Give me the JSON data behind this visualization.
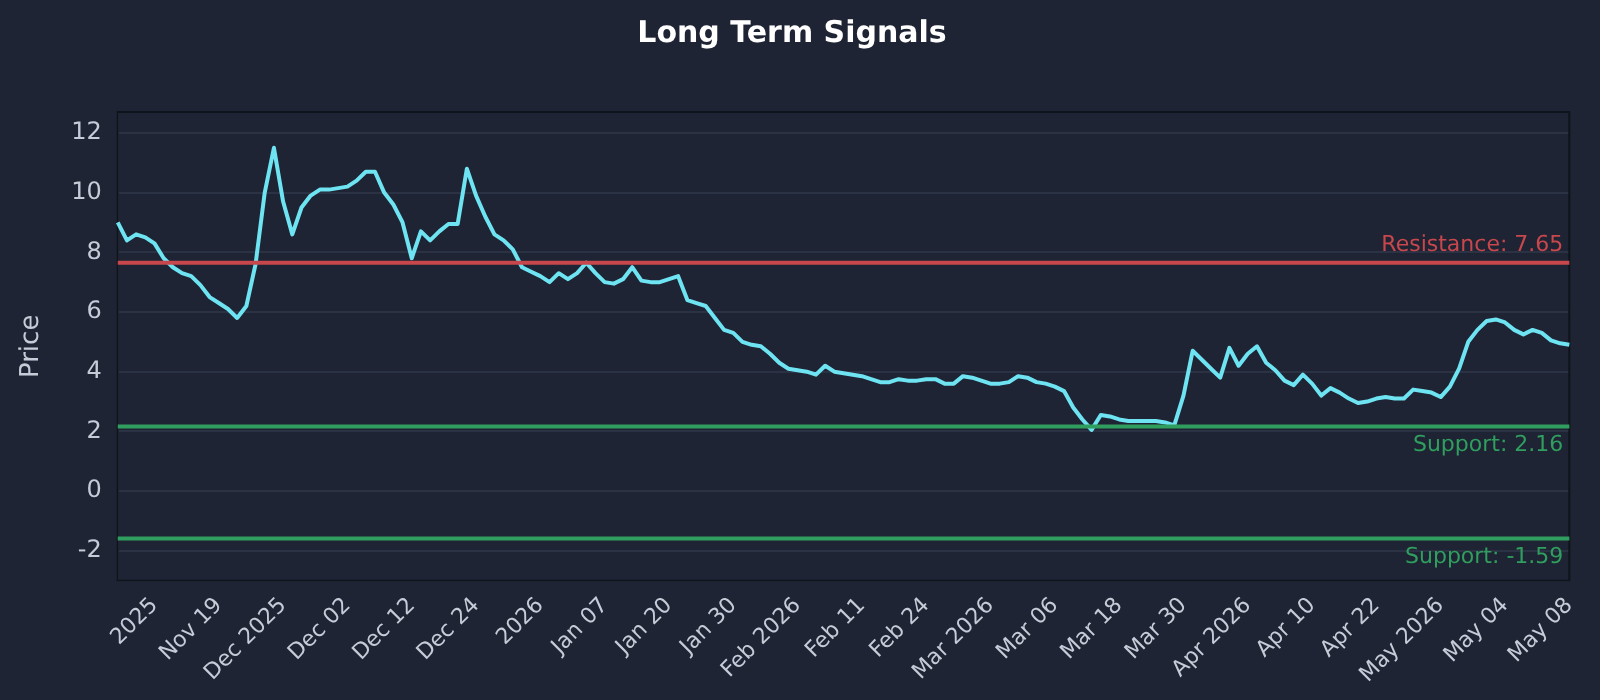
{
  "chart_data": {
    "type": "line",
    "title": "Long Term Signals",
    "ylabel": "Price",
    "categories": [
      null,
      null,
      null,
      null,
      "2025",
      null,
      null,
      null,
      null,
      null,
      null,
      "Nov 19",
      null,
      null,
      null,
      null,
      null,
      null,
      "Dec 2025",
      null,
      null,
      null,
      null,
      null,
      null,
      "Dec 02",
      null,
      null,
      null,
      null,
      null,
      null,
      "Dec 12",
      null,
      null,
      null,
      null,
      null,
      null,
      "Dec 24",
      null,
      null,
      null,
      null,
      null,
      null,
      "2026",
      null,
      null,
      null,
      null,
      null,
      null,
      "Jan 07",
      null,
      null,
      null,
      null,
      null,
      null,
      "Jan 20",
      null,
      null,
      null,
      null,
      null,
      null,
      "Jan 30",
      null,
      null,
      null,
      null,
      null,
      null,
      "Feb 2026",
      null,
      null,
      null,
      null,
      null,
      null,
      "Feb 11",
      null,
      null,
      null,
      null,
      null,
      null,
      "Feb 24",
      null,
      null,
      null,
      null,
      null,
      null,
      "Mar 2026",
      null,
      null,
      null,
      null,
      null,
      null,
      "Mar 06",
      null,
      null,
      null,
      null,
      null,
      null,
      "Mar 18",
      null,
      null,
      null,
      null,
      null,
      null,
      "Mar 30",
      null,
      null,
      null,
      null,
      null,
      null,
      "Apr 2026",
      null,
      null,
      null,
      null,
      null,
      null,
      "Apr 10",
      null,
      null,
      null,
      null,
      null,
      null,
      "Apr 22",
      null,
      null,
      null,
      null,
      null,
      null,
      "May 2026",
      null,
      null,
      null,
      null,
      null,
      null,
      "May 04",
      null,
      null,
      null,
      null,
      null,
      null,
      "May 08"
    ],
    "series": [
      {
        "color": "#6ee3f2",
        "values": [
          9.0,
          8.4,
          8.6,
          8.5,
          8.3,
          7.8,
          7.5,
          7.3,
          7.2,
          6.9,
          6.5,
          6.3,
          6.1,
          5.8,
          6.2,
          7.6,
          10.0,
          11.5,
          9.7,
          8.6,
          9.5,
          9.9,
          10.1,
          10.1,
          10.15,
          10.2,
          10.4,
          10.7,
          10.7,
          10.0,
          9.6,
          9.0,
          7.8,
          8.7,
          8.4,
          8.7,
          8.95,
          8.95,
          10.8,
          9.9,
          9.2,
          8.6,
          8.4,
          8.1,
          7.5,
          7.35,
          7.2,
          7.0,
          7.3,
          7.1,
          7.3,
          7.65,
          7.3,
          7.0,
          6.95,
          7.1,
          7.5,
          7.05,
          7.0,
          7.0,
          7.1,
          7.2,
          6.4,
          6.3,
          6.2,
          5.8,
          5.4,
          5.3,
          5.0,
          4.9,
          4.85,
          4.6,
          4.3,
          4.1,
          4.05,
          4.0,
          3.9,
          4.2,
          4.0,
          3.95,
          3.9,
          3.85,
          3.75,
          3.65,
          3.65,
          3.75,
          3.7,
          3.7,
          3.75,
          3.75,
          3.6,
          3.6,
          3.85,
          3.8,
          3.7,
          3.6,
          3.6,
          3.65,
          3.85,
          3.8,
          3.65,
          3.6,
          3.5,
          3.35,
          2.8,
          2.4,
          2.05,
          2.55,
          2.5,
          2.4,
          2.35,
          2.35,
          2.35,
          2.35,
          2.3,
          2.2,
          3.2,
          4.7,
          4.4,
          4.1,
          3.8,
          4.8,
          4.2,
          4.6,
          4.85,
          4.3,
          4.05,
          3.7,
          3.55,
          3.9,
          3.6,
          3.2,
          3.45,
          3.3,
          3.1,
          2.95,
          3.0,
          3.1,
          3.15,
          3.1,
          3.1,
          3.4,
          3.35,
          3.3,
          3.15,
          3.5,
          4.1,
          5.0,
          5.4,
          5.7,
          5.75,
          5.65,
          5.4,
          5.25,
          5.4,
          5.3,
          5.05,
          4.95,
          4.9
        ]
      }
    ],
    "ylim": [
      -3,
      12.7
    ],
    "yticks": [
      -2,
      0,
      2,
      4,
      6,
      8,
      10,
      12
    ],
    "grid": "y",
    "legend": false,
    "marker": "none",
    "line_style": "solid",
    "ref_lines": [
      {
        "axis": "y",
        "value": 7.65,
        "label": "Resistance: 7.65",
        "color": "#c8474d"
      },
      {
        "axis": "y",
        "value": 2.16,
        "label": "Support: 2.16",
        "color": "#2f9e5e"
      },
      {
        "axis": "y",
        "value": -1.59,
        "label": "Support: -1.59",
        "color": "#2f9e5e"
      }
    ]
  }
}
